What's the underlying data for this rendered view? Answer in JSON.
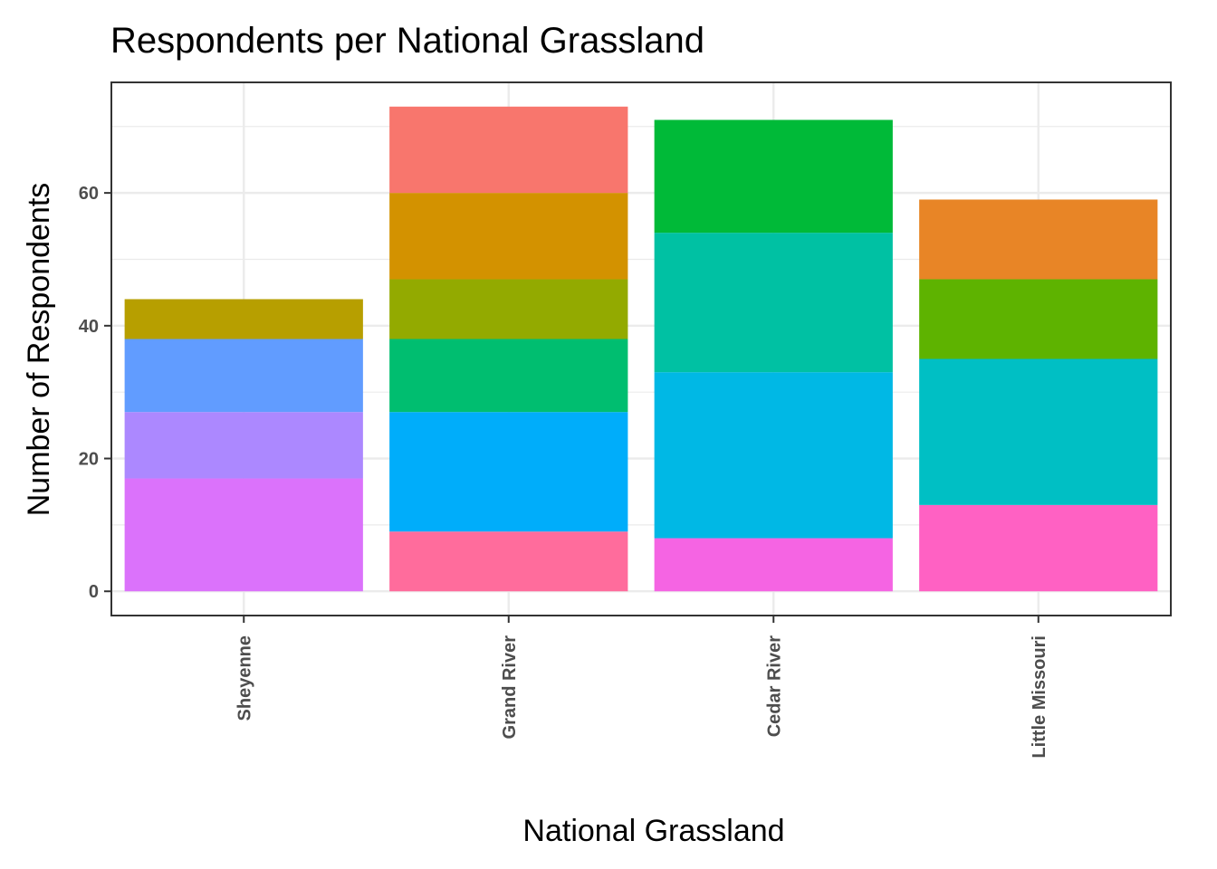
{
  "chart_data": {
    "type": "bar",
    "stacked": true,
    "title": "Respondents per National Grassland",
    "xlabel": "National Grassland",
    "ylabel": "Number of Respondents",
    "ylim": [
      0,
      73
    ],
    "yticks": [
      0,
      20,
      40,
      60
    ],
    "grid": true,
    "legend": "none",
    "categories": [
      "Sheyenne",
      "Grand River",
      "Cedar River",
      "Little Missouri"
    ],
    "stacks": [
      {
        "category": "Sheyenne",
        "segments": [
          {
            "value": 17,
            "color": "#DB72FB"
          },
          {
            "value": 10,
            "color": "#AC88FF"
          },
          {
            "value": 11,
            "color": "#619CFF"
          },
          {
            "value": 6,
            "color": "#B79F00"
          }
        ]
      },
      {
        "category": "Grand River",
        "segments": [
          {
            "value": 9,
            "color": "#FF6C9C"
          },
          {
            "value": 18,
            "color": "#00ADFA"
          },
          {
            "value": 11,
            "color": "#00BE70"
          },
          {
            "value": 9,
            "color": "#93AA00"
          },
          {
            "value": 13,
            "color": "#D39200"
          },
          {
            "value": 13,
            "color": "#F8766D"
          }
        ]
      },
      {
        "category": "Cedar River",
        "segments": [
          {
            "value": 8,
            "color": "#F564E3"
          },
          {
            "value": 25,
            "color": "#00B8E5"
          },
          {
            "value": 21,
            "color": "#00C1A3"
          },
          {
            "value": 17,
            "color": "#00BA38"
          }
        ]
      },
      {
        "category": "Little Missouri",
        "segments": [
          {
            "value": 13,
            "color": "#FF61C3"
          },
          {
            "value": 22,
            "color": "#00BFC4"
          },
          {
            "value": 12,
            "color": "#5EB300"
          },
          {
            "value": 12,
            "color": "#E88526"
          }
        ]
      }
    ]
  }
}
